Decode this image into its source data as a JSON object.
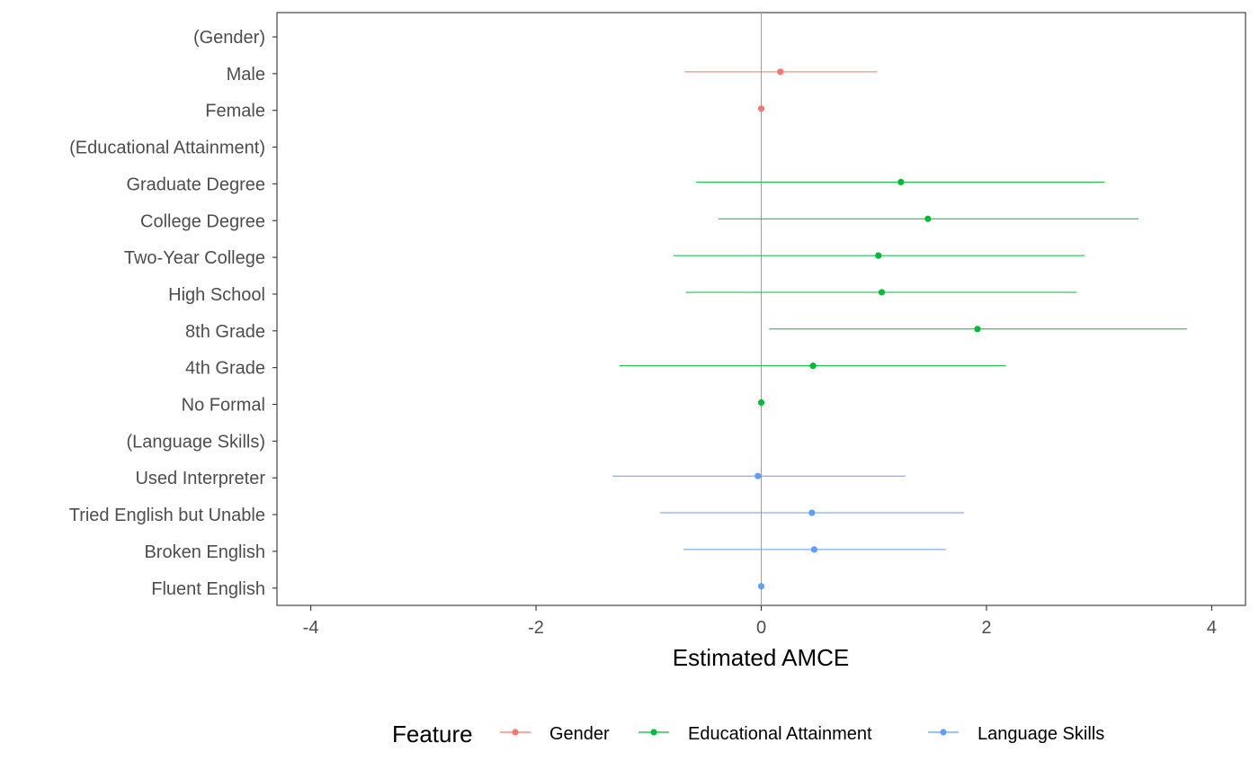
{
  "chart_data": {
    "type": "scatter",
    "subtype": "coefficient-plot-with-confidence-intervals",
    "xlabel": "Estimated AMCE",
    "ylabel": "",
    "title": "",
    "xlim": [
      -4.3,
      4.3
    ],
    "xticks": [
      -4,
      -2,
      0,
      2,
      4
    ],
    "xtick_labels": [
      "-4",
      "-2",
      "0",
      "2",
      "4"
    ],
    "reference_line": 0,
    "grid": false,
    "legend": {
      "title": "Feature",
      "placement": "bottom",
      "entries": [
        "Gender",
        "Educational Attainment",
        "Language Skills"
      ]
    },
    "colors": {
      "Gender": "#f8766d",
      "Educational Attainment": "#00ba38",
      "Language Skills": "#619cff"
    },
    "rows": [
      {
        "label": "(Gender)",
        "feature": "Gender",
        "header": true
      },
      {
        "label": "Male",
        "feature": "Gender",
        "estimate": 0.17,
        "lower": -0.68,
        "upper": 1.03
      },
      {
        "label": "Female",
        "feature": "Gender",
        "estimate": 0.0,
        "lower": 0.0,
        "upper": 0.0
      },
      {
        "label": "(Educational Attainment)",
        "feature": "Educational Attainment",
        "header": true
      },
      {
        "label": "Graduate Degree",
        "feature": "Educational Attainment",
        "estimate": 1.24,
        "lower": -0.58,
        "upper": 3.05
      },
      {
        "label": "College Degree",
        "feature": "Educational Attainment",
        "estimate": 1.48,
        "lower": -0.38,
        "upper": 3.35
      },
      {
        "label": "Two-Year College",
        "feature": "Educational Attainment",
        "estimate": 1.04,
        "lower": -0.78,
        "upper": 2.87
      },
      {
        "label": "High School",
        "feature": "Educational Attainment",
        "estimate": 1.07,
        "lower": -0.67,
        "upper": 2.8
      },
      {
        "label": "8th Grade",
        "feature": "Educational Attainment",
        "estimate": 1.92,
        "lower": 0.07,
        "upper": 3.78
      },
      {
        "label": "4th Grade",
        "feature": "Educational Attainment",
        "estimate": 0.46,
        "lower": -1.26,
        "upper": 2.17
      },
      {
        "label": "No Formal",
        "feature": "Educational Attainment",
        "estimate": 0.0,
        "lower": 0.0,
        "upper": 0.0
      },
      {
        "label": "(Language Skills)",
        "feature": "Language Skills",
        "header": true
      },
      {
        "label": "Used Interpreter",
        "feature": "Language Skills",
        "estimate": -0.03,
        "lower": -1.32,
        "upper": 1.28
      },
      {
        "label": "Tried English but Unable",
        "feature": "Language Skills",
        "estimate": 0.45,
        "lower": -0.9,
        "upper": 1.8
      },
      {
        "label": "Broken English",
        "feature": "Language Skills",
        "estimate": 0.47,
        "lower": -0.69,
        "upper": 1.64
      },
      {
        "label": "Fluent English",
        "feature": "Language Skills",
        "estimate": 0.0,
        "lower": 0.0,
        "upper": 0.0
      }
    ]
  }
}
